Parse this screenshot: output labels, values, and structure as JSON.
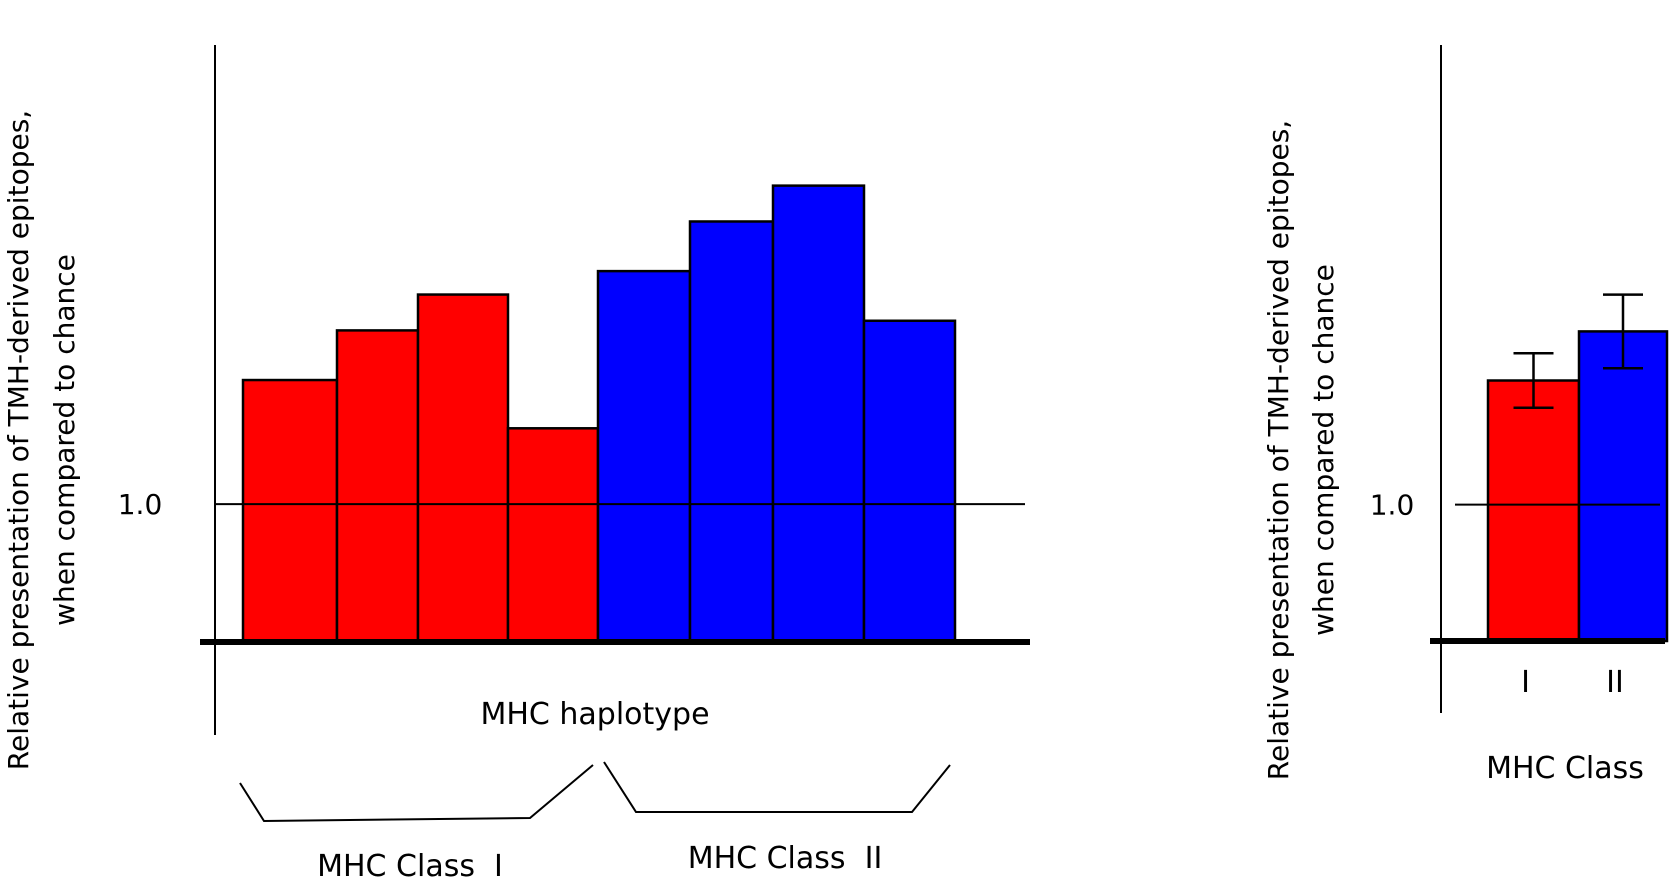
{
  "chart_data": [
    {
      "type": "bar",
      "ylabel_line1": "Relative presentation of TMH-derived epitopes,",
      "ylabel_line2": "when compared to chance",
      "reference_tick_label": "1.0",
      "reference_value": 1.0,
      "xlabel": "MHC haplotype",
      "ylim": [
        0,
        4.33
      ],
      "grid": false,
      "series": [
        {
          "name": "MHC Class  I",
          "color": "#ff0000",
          "values": [
            1.9,
            2.26,
            2.52,
            1.55
          ]
        },
        {
          "name": "MHC Class  II",
          "color": "#0000ff",
          "values": [
            2.69,
            3.05,
            3.31,
            2.33
          ]
        }
      ]
    },
    {
      "type": "bar",
      "ylabel_line1": "Relative presentation of TMH-derived epitopes,",
      "ylabel_line2": "when compared to chance",
      "reference_tick_label": "1.0",
      "reference_value": 1.0,
      "xlabel": "MHC Class",
      "ylim": [
        0,
        4.37
      ],
      "grid": false,
      "categories": [
        "I",
        "II"
      ],
      "colors": [
        "#ff0000",
        "#0000ff"
      ],
      "values": [
        1.91,
        2.27
      ],
      "error": [
        0.2,
        0.27
      ]
    }
  ]
}
